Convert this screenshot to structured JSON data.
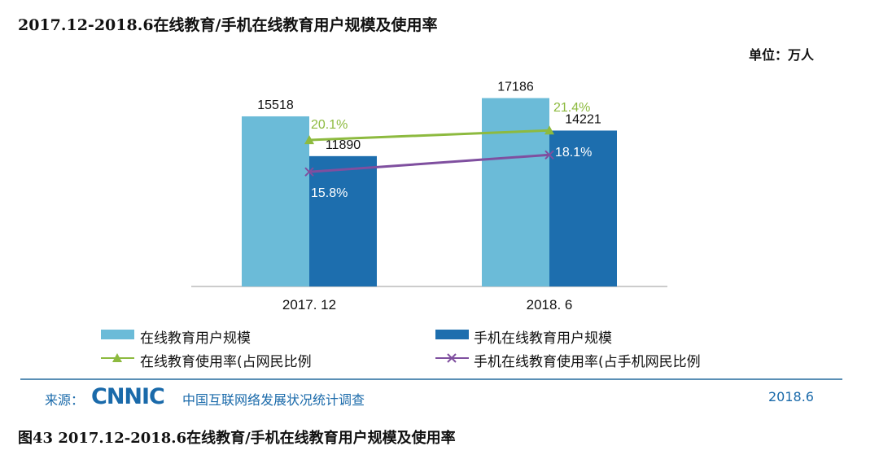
{
  "chart_data": {
    "type": "bar",
    "title": "2017.12-2018.6在线教育/手机在线教育用户规模及使用率",
    "unit": "单位：万人",
    "categories": [
      "2017.12",
      "2018.6"
    ],
    "series": [
      {
        "name": "在线教育用户规模",
        "kind": "bar",
        "color": "#6bbbd8",
        "values": [
          15518,
          17186
        ]
      },
      {
        "name": "手机在线教育用户规模",
        "kind": "bar",
        "color": "#1d6eae",
        "values": [
          11890,
          14221
        ]
      },
      {
        "name": "在线教育使用率(占网民比例",
        "kind": "line",
        "marker": "triangle",
        "color": "#8dba3f",
        "values": [
          20.1,
          21.4
        ],
        "labels": [
          "20.1%",
          "21.4%"
        ]
      },
      {
        "name": "手机在线教育使用率(占手机网民比例",
        "kind": "line",
        "marker": "x",
        "color": "#7f4f9f",
        "values": [
          15.8,
          18.1
        ],
        "labels": [
          "15.8%",
          "18.1%"
        ]
      }
    ],
    "tick_labels": [
      "2017. 12",
      "2018. 6"
    ],
    "legend": "bottom",
    "grid": false
  },
  "footer": {
    "source_label": "来源：",
    "logo": "CNNIC",
    "source_name": "中国互联网络发展状况统计调查",
    "date": "2018.6"
  },
  "caption": "图43  2017.12-2018.6在线教育/手机在线教育用户规模及使用率"
}
